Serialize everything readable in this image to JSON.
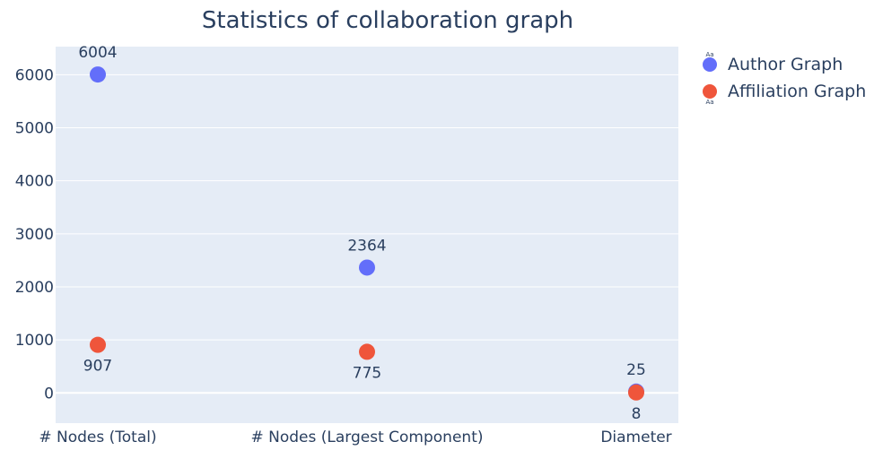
{
  "chart_data": {
    "type": "scatter",
    "title": "Statistics of collaboration graph",
    "xlabel": "",
    "ylabel": "",
    "categories": [
      "# Nodes (Total)",
      "# Nodes (Largest Component)",
      "Diameter"
    ],
    "y_ticks": [
      0,
      1000,
      2000,
      3000,
      4000,
      5000,
      6000
    ],
    "ylim": [
      -570,
      6530
    ],
    "grid": true,
    "legend_position": "top-right",
    "series": [
      {
        "name": "Author Graph",
        "values": [
          6004,
          2364,
          25
        ],
        "color": "#636efa",
        "label_position": "top"
      },
      {
        "name": "Affiliation Graph",
        "values": [
          907,
          775,
          8
        ],
        "color": "#ef553b",
        "label_position": "bottom"
      }
    ],
    "legend_marker_text": "Aa"
  }
}
